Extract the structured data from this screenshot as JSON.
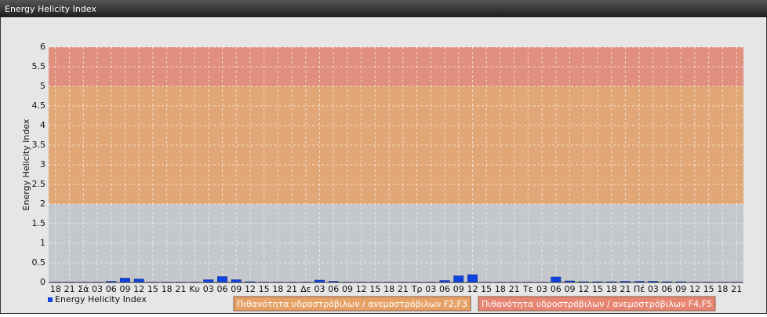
{
  "chart_data": {
    "type": "bar",
    "title": "Energy Helicity Index",
    "y_label": "Energy Helicity Index",
    "categories": [
      "18",
      "21",
      "Σά",
      "03",
      "06",
      "09",
      "12",
      "15",
      "18",
      "21",
      "Κυ",
      "03",
      "06",
      "09",
      "12",
      "15",
      "18",
      "21",
      "Δε",
      "03",
      "06",
      "09",
      "12",
      "15",
      "18",
      "21",
      "Τρ",
      "03",
      "06",
      "09",
      "12",
      "15",
      "18",
      "21",
      "Τε",
      "03",
      "06",
      "09",
      "12",
      "15",
      "18",
      "21",
      "Πέ",
      "03",
      "06",
      "09",
      "12",
      "15",
      "18",
      "21"
    ],
    "series": [
      {
        "name": "Energy Helicity Index",
        "color": "#1044e0",
        "values": [
          0.01,
          0.01,
          0.01,
          0.01,
          0.03,
          0.11,
          0.09,
          0.01,
          0.01,
          0.01,
          0.01,
          0.07,
          0.15,
          0.07,
          0.02,
          0.01,
          0.01,
          0.01,
          0.01,
          0.06,
          0.03,
          0.01,
          0.01,
          0.01,
          0.01,
          0.01,
          0.01,
          0.01,
          0.05,
          0.17,
          0.2,
          0.01,
          0.01,
          0.01,
          0.01,
          0.01,
          0.14,
          0.04,
          0.02,
          0.02,
          0.02,
          0.03,
          0.03,
          0.03,
          0.02,
          0.02,
          0.01,
          0.01,
          0.01,
          0.01
        ]
      }
    ],
    "bands": [
      {
        "name": "Πιθανότητα υδροστρόβιλων / ανεμοστρόβιλων F2,F3",
        "from": 2,
        "to": 5,
        "color": "#e6a167"
      },
      {
        "name": "Πιθανότητα υδροστρόβιλων / ανεμοστρόβιλων F4,F5",
        "from": 5,
        "to": 6,
        "color": "#e68672"
      }
    ],
    "ylim": [
      0,
      6
    ],
    "yticks": [
      0,
      0.5,
      1,
      1.5,
      2,
      2.5,
      3,
      3.5,
      4,
      4.5,
      5,
      5.5,
      6
    ],
    "grid": true
  }
}
